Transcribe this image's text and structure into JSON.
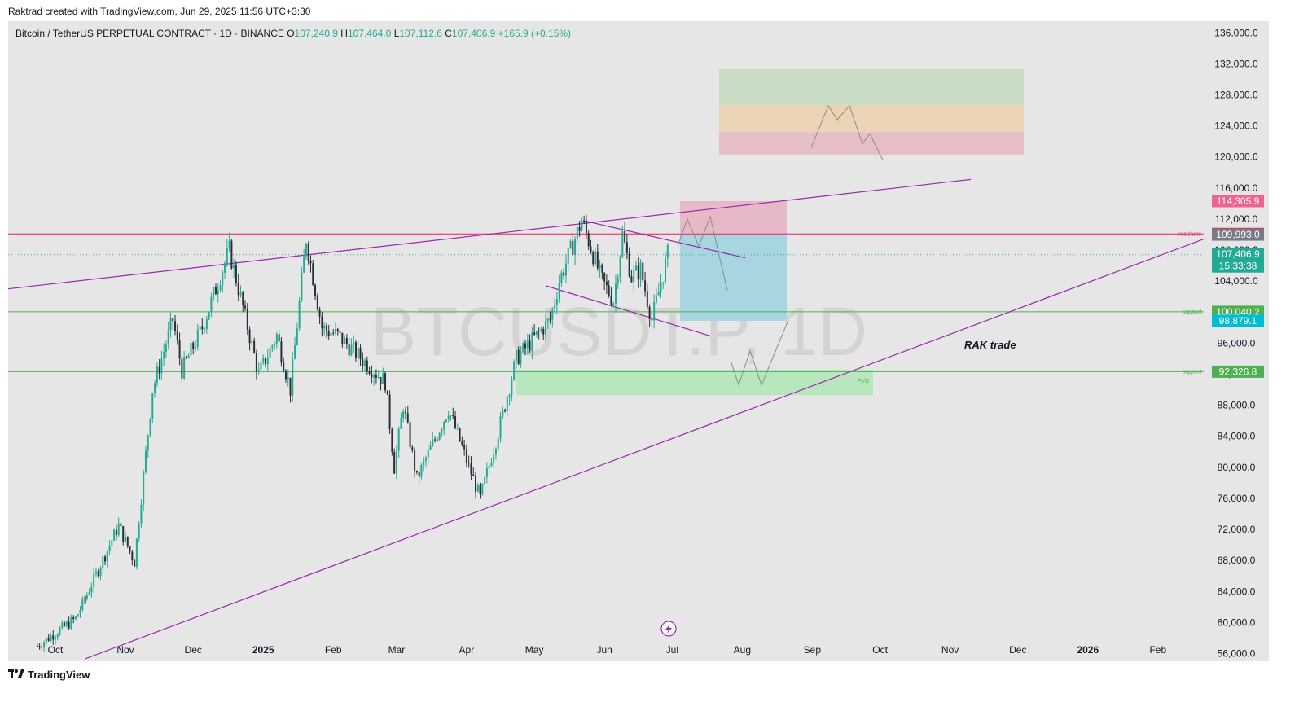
{
  "caption": "Raktrad created with TradingView.com, Jun 29, 2025 11:56 UTC+3:30",
  "footer": {
    "brand": "TradingView",
    "logo_icon": "tradingview-logo-icon"
  },
  "symbol": {
    "title": "Bitcoin / TetherUS PERPETUAL CONTRACT · 1D · BINANCE",
    "open_label": "O",
    "open": "107,240.9",
    "high_label": "H",
    "high": "107,464.0",
    "low_label": "L",
    "low": "107,112.6",
    "close_label": "C",
    "close": "107,406.9",
    "change": "+165.9 (+0.15%)"
  },
  "colors": {
    "background": "#e6e6e6",
    "up": "#22ab94",
    "down": "#131722",
    "trendline": "#9c27b0",
    "resistance": "#e91e63",
    "support": "#4caf50"
  },
  "chart_data": {
    "type": "candlestick",
    "symbol_watermark": "BTCUSDT.P, 1D",
    "x_ticks": [
      "Oct",
      "Nov",
      "Dec",
      "2025",
      "Feb",
      "Mar",
      "Apr",
      "May",
      "Jun",
      "Jul",
      "Aug",
      "Sep",
      "Oct",
      "Nov",
      "Dec",
      "2026",
      "Feb"
    ],
    "y_ticks": [
      "56,000.0",
      "60,000.0",
      "64,000.0",
      "68,000.0",
      "72,000.0",
      "76,000.0",
      "80,000.0",
      "84,000.0",
      "88,000.0",
      "92,000.0",
      "96,000.0",
      "100,000.0",
      "104,000.0",
      "108,000.0",
      "112,000.0",
      "116,000.0",
      "120,000.0",
      "124,000.0",
      "128,000.0",
      "132,000.0",
      "136,000.0"
    ],
    "ylim": [
      55000,
      137500
    ],
    "anchor_points": [
      {
        "date": "2024-09-23",
        "price": 57000
      },
      {
        "date": "2024-10-10",
        "price": 60500
      },
      {
        "date": "2024-10-29",
        "price": 72500
      },
      {
        "date": "2024-11-05",
        "price": 67800
      },
      {
        "date": "2024-11-13",
        "price": 90000
      },
      {
        "date": "2024-11-22",
        "price": 99000
      },
      {
        "date": "2024-11-26",
        "price": 92500
      },
      {
        "date": "2024-12-05",
        "price": 98000
      },
      {
        "date": "2024-12-17",
        "price": 108000
      },
      {
        "date": "2024-12-30",
        "price": 92000
      },
      {
        "date": "2025-01-07",
        "price": 97000
      },
      {
        "date": "2025-01-13",
        "price": 90000
      },
      {
        "date": "2025-01-20",
        "price": 109500
      },
      {
        "date": "2025-01-27",
        "price": 98000
      },
      {
        "date": "2025-02-03",
        "price": 97000
      },
      {
        "date": "2025-02-24",
        "price": 91000
      },
      {
        "date": "2025-02-28",
        "price": 80000
      },
      {
        "date": "2025-03-04",
        "price": 88000
      },
      {
        "date": "2025-03-10",
        "price": 78500
      },
      {
        "date": "2025-03-24",
        "price": 87500
      },
      {
        "date": "2025-04-07",
        "price": 76000
      },
      {
        "date": "2025-04-15",
        "price": 84500
      },
      {
        "date": "2025-04-23",
        "price": 94000
      },
      {
        "date": "2025-05-08",
        "price": 99000
      },
      {
        "date": "2025-05-12",
        "price": 104000
      },
      {
        "date": "2025-05-22",
        "price": 111800
      },
      {
        "date": "2025-05-31",
        "price": 104000
      },
      {
        "date": "2025-06-05",
        "price": 101500
      },
      {
        "date": "2025-06-09",
        "price": 110000
      },
      {
        "date": "2025-06-13",
        "price": 104500
      },
      {
        "date": "2025-06-17",
        "price": 105500
      },
      {
        "date": "2025-06-22",
        "price": 99000
      },
      {
        "date": "2025-06-29",
        "price": 107406.9
      }
    ],
    "price_labels": [
      {
        "value": "114,305.9",
        "price": 114305.9,
        "color": "#f06292"
      },
      {
        "value": "110,076.0",
        "price": 110076.0,
        "color": "#e91e63"
      },
      {
        "value": "109,993.0",
        "price": 109993.0,
        "color": "#787b86"
      },
      {
        "value": "107,406.9",
        "price": 107406.9,
        "color": "#22ab94",
        "sub": "15:33:38"
      },
      {
        "value": "100,040.2",
        "price": 100040.2,
        "color": "#4caf50"
      },
      {
        "value": "98,879.1",
        "price": 98879.1,
        "color": "#00bcd4"
      },
      {
        "value": "92,326.8",
        "price": 92326.8,
        "color": "#4caf50"
      }
    ],
    "annotations": {
      "resistance_label": "resistans",
      "support_label_1": "support",
      "support_label_2": "support",
      "fvg_label": "FVG",
      "trade_label": "RAK trade"
    }
  }
}
